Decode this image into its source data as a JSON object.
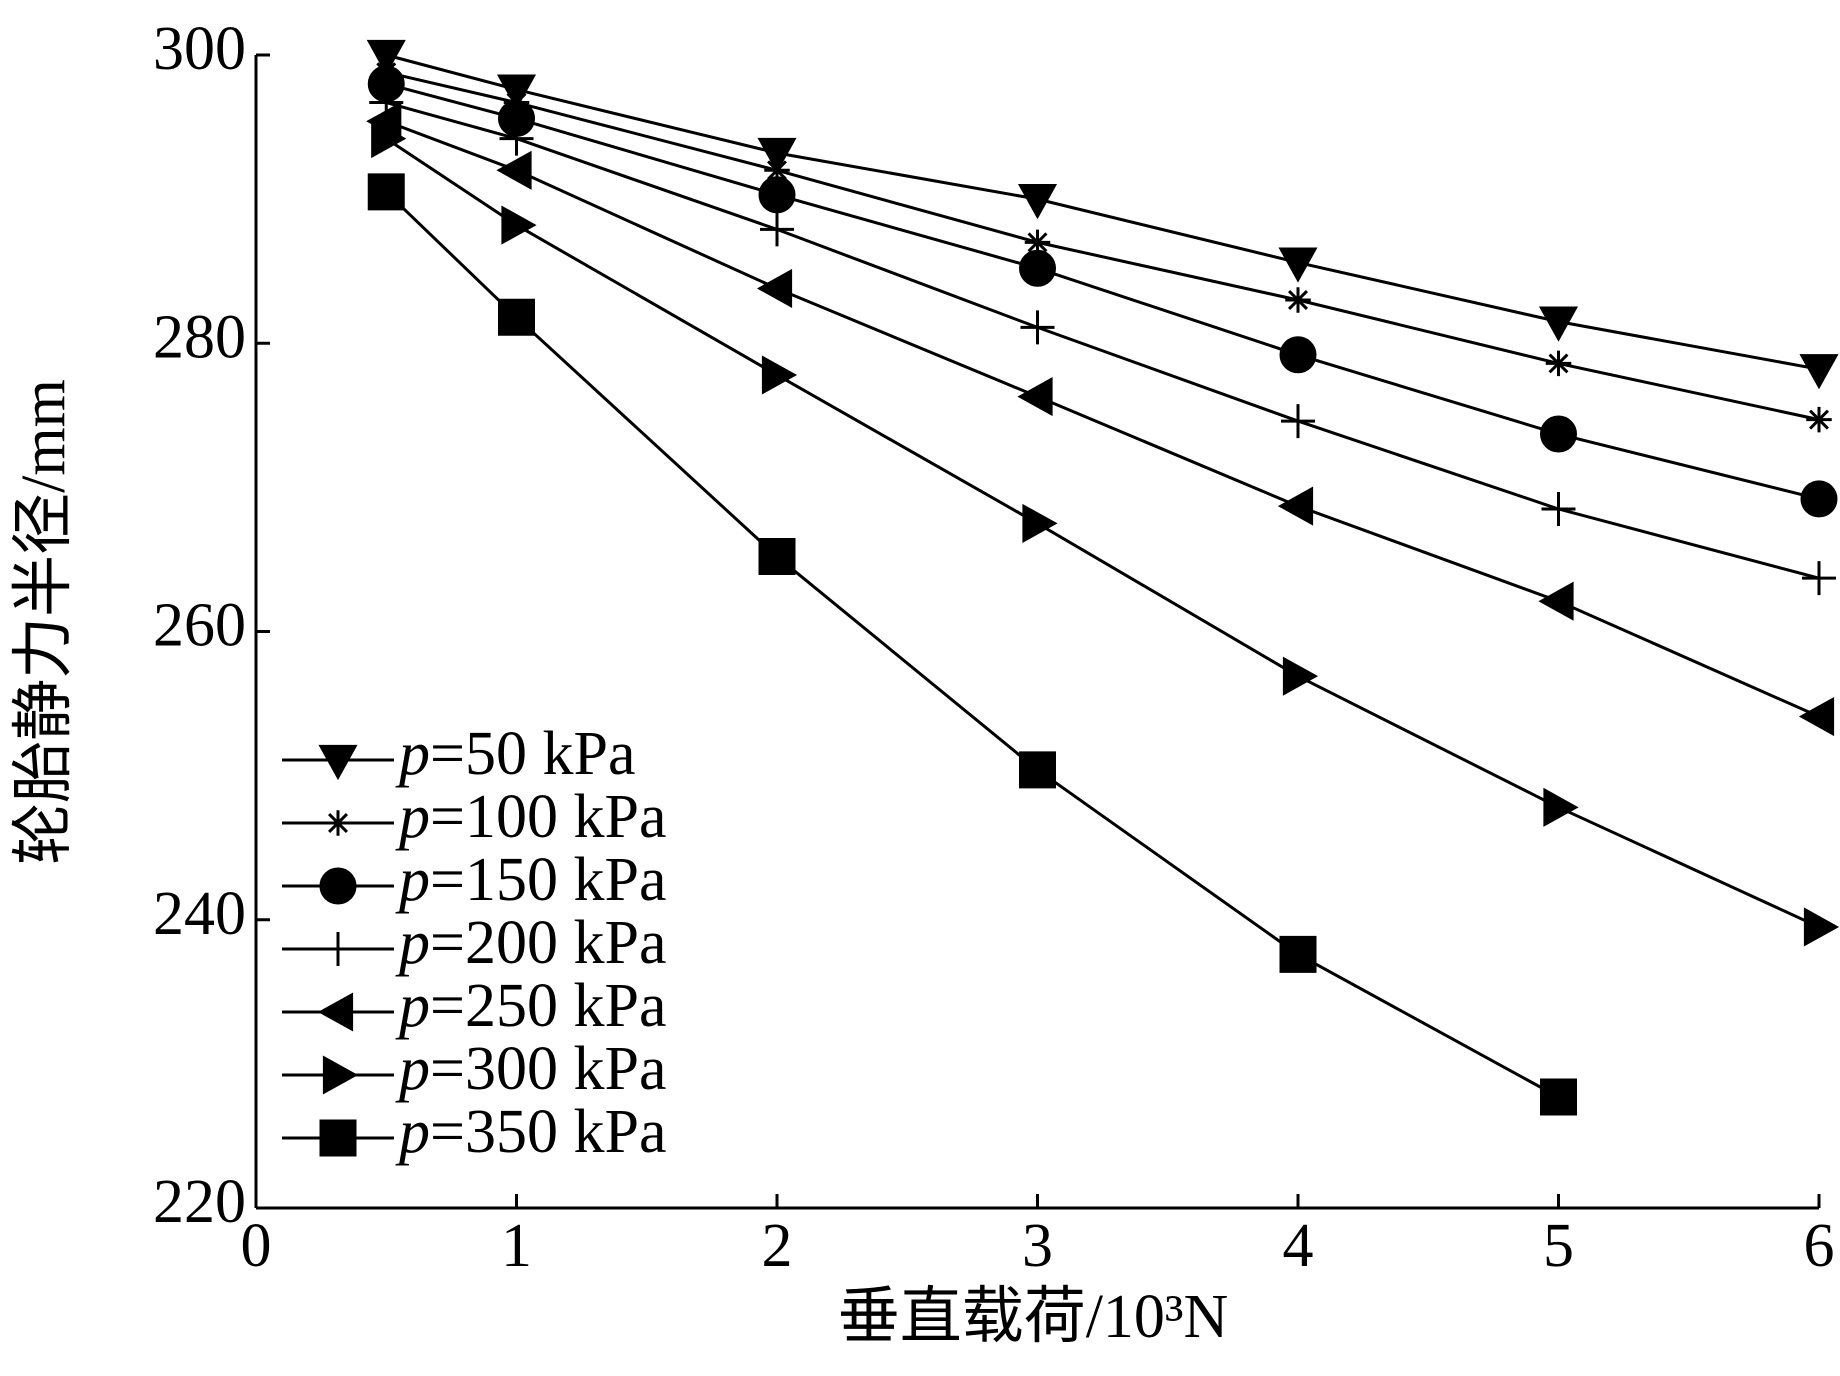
{
  "chart_data": {
    "type": "line",
    "x_label": "垂直载荷/10³N",
    "y_label": "轮胎静力半径/mm",
    "x": [
      0.5,
      1,
      2,
      3,
      4,
      5,
      6
    ],
    "xlim": [
      0,
      6
    ],
    "xticks": [
      0,
      1,
      2,
      3,
      4,
      5,
      6
    ],
    "ylim": [
      220,
      300
    ],
    "yticks": [
      220,
      240,
      260,
      280,
      300
    ],
    "legend": "lower-left",
    "series": [
      {
        "name": "p=50 kPa",
        "color": "#000000",
        "marker": "triangle-down",
        "values": [
          300,
          297.6,
          293.2,
          290,
          285.6,
          281.5,
          278.2
        ]
      },
      {
        "name": "p=100 kPa",
        "color": "#000000",
        "marker": "asterisk",
        "values": [
          298.8,
          296.7,
          292,
          287,
          283,
          278.6,
          274.7
        ]
      },
      {
        "name": "p=150 kPa",
        "color": "#000000",
        "marker": "circle",
        "values": [
          298,
          295.6,
          290.3,
          285.2,
          279.2,
          273.7,
          269.2
        ]
      },
      {
        "name": "p=200 kPa",
        "color": "#000000",
        "marker": "plus",
        "values": [
          296.7,
          294.2,
          287.9,
          281.1,
          274.6,
          268.5,
          263.7
        ]
      },
      {
        "name": "p=250 kPa",
        "color": "#000000",
        "marker": "triangle-left",
        "values": [
          295.4,
          292,
          283.8,
          276.3,
          268.7,
          262.1,
          254.1
        ]
      },
      {
        "name": "p=300 kPa",
        "color": "#000000",
        "marker": "triangle-right",
        "values": [
          294.2,
          288.2,
          277.8,
          267.5,
          256.9,
          247.8,
          239.5
        ]
      },
      {
        "name": "p=350 kPa",
        "color": "#000000",
        "marker": "square",
        "values": [
          290.5,
          281.8,
          265.2,
          250.4,
          237.6,
          227.7,
          null
        ]
      }
    ]
  }
}
